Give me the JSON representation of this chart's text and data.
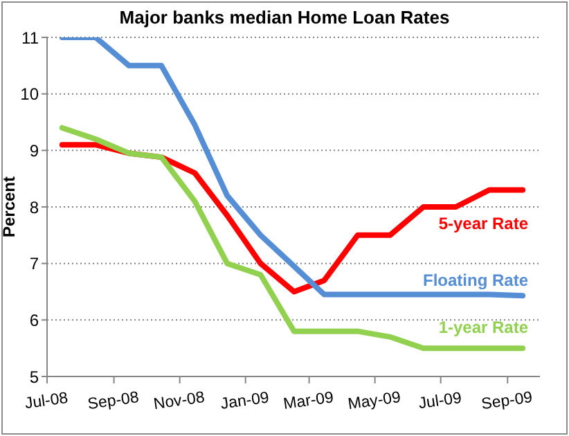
{
  "chart_data": {
    "type": "line",
    "title": "Major banks median Home Loan Rates",
    "ylabel": "Percent",
    "x": [
      "2008-07-15",
      "2008-08-15",
      "2008-09-15",
      "2008-10-15",
      "2008-11-15",
      "2008-12-15",
      "2009-01-15",
      "2009-02-15",
      "2009-03-15",
      "2009-04-15",
      "2009-05-15",
      "2009-06-15",
      "2009-07-15",
      "2009-08-15",
      "2009-09-15"
    ],
    "series": [
      {
        "name": "5-year Rate",
        "color": "#ff0000",
        "values": [
          9.1,
          9.1,
          8.95,
          8.88,
          8.6,
          7.85,
          7.0,
          6.5,
          6.7,
          7.5,
          7.5,
          8.0,
          8.0,
          8.3,
          8.3
        ]
      },
      {
        "name": "Floating Rate",
        "color": "#558ed5",
        "values": [
          11.0,
          11.0,
          10.5,
          10.5,
          9.45,
          8.2,
          7.5,
          6.95,
          6.45,
          6.45,
          6.45,
          6.45,
          6.45,
          6.45,
          6.43
        ]
      },
      {
        "name": "1-year Rate",
        "color": "#92d050",
        "values": [
          9.4,
          9.2,
          8.95,
          8.88,
          8.1,
          7.0,
          6.8,
          5.8,
          5.8,
          5.8,
          5.7,
          5.5,
          5.5,
          5.5,
          5.5
        ]
      }
    ],
    "xlim": [
      "2008-07-01",
      "2009-10-01"
    ],
    "xticks": [
      {
        "value": "2008-07-01",
        "label": "Jul-08"
      },
      {
        "value": "2008-09-01",
        "label": "Sep-08"
      },
      {
        "value": "2008-11-01",
        "label": "Nov-08"
      },
      {
        "value": "2009-01-01",
        "label": "Jan-09"
      },
      {
        "value": "2009-03-01",
        "label": "Mar-09"
      },
      {
        "value": "2009-05-01",
        "label": "May-09"
      },
      {
        "value": "2009-07-01",
        "label": "Jul-09"
      },
      {
        "value": "2009-09-01",
        "label": "Sep-09"
      }
    ],
    "ylim": [
      5,
      11
    ],
    "yticks": [
      5,
      6,
      7,
      8,
      9,
      10,
      11
    ],
    "grid": "y",
    "legend": false,
    "marker": "none",
    "line_style": "solid"
  }
}
